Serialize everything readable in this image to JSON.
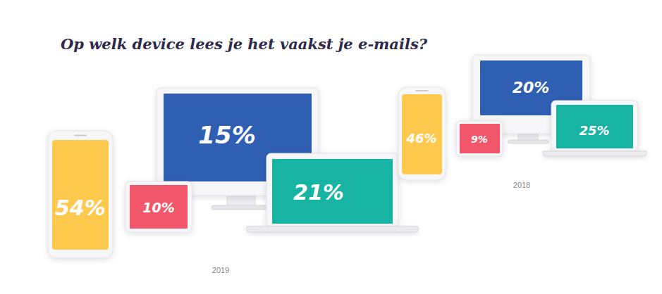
{
  "chart_data": [
    {
      "type": "pictorial",
      "title": "Op welk device lees je het vaakst je e-mails?",
      "subtitle": "2019",
      "values": [
        54,
        10,
        15,
        21
      ],
      "value_labels": [
        "54%",
        "10%",
        "15%",
        "21%"
      ],
      "colors": [
        "#ffc94d",
        "#f2566a",
        "#2f5fb3",
        "#17b3a3"
      ],
      "data_labels": true
    },
    {
      "type": "pictorial",
      "subtitle": "2018",
      "values": [
        46,
        9,
        20,
        25
      ],
      "value_labels": [
        "46%",
        "9%",
        "20%",
        "25%"
      ],
      "colors": [
        "#ffc94d",
        "#f2566a",
        "#2f5fb3",
        "#17b3a3"
      ],
      "data_labels": true
    }
  ]
}
